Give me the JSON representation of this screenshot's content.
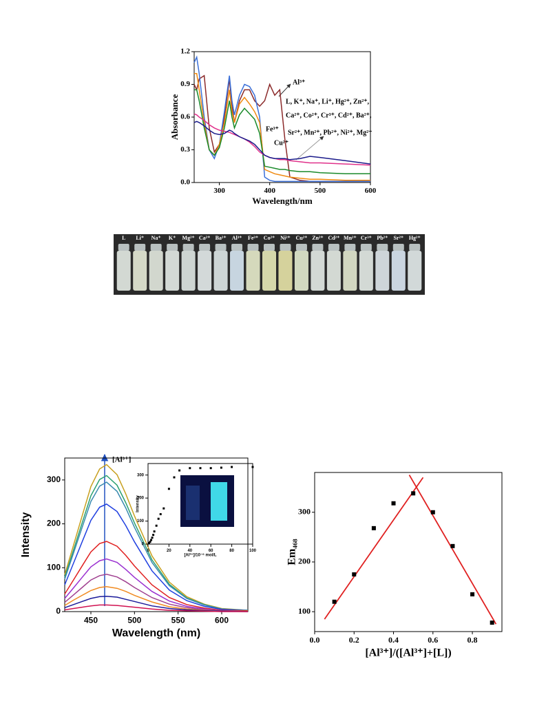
{
  "chart_data": [
    {
      "type": "line",
      "xlabel": "Wavelength/nm",
      "ylabel": "Absorbance",
      "x": [
        250,
        255,
        260,
        270,
        280,
        290,
        300,
        310,
        320,
        325,
        330,
        340,
        350,
        360,
        370,
        380,
        390,
        400,
        410,
        420,
        430,
        440,
        460,
        480,
        500,
        550,
        600
      ],
      "xlim": [
        250,
        600
      ],
      "xticks": [
        300,
        400,
        500,
        600
      ],
      "ylim": [
        0,
        1.2
      ],
      "yticks": [
        {
          "value": 0,
          "label": "0.0"
        },
        {
          "value": 0.3,
          "label": "0.3"
        },
        {
          "value": 0.6,
          "label": "0.6"
        },
        {
          "value": 0.9,
          "label": "0.9"
        },
        {
          "value": 1.2,
          "label": "1.2"
        }
      ],
      "annotations": [
        "Al³⁺",
        "L, K⁺, Na⁺, Li⁺, Hg²⁺, Zn²⁺,",
        "Ca²⁺, Co²⁺, Cr³⁺, Cd²⁺, Ba²⁺,",
        "Sr²⁺, Mn²⁺, Pb²⁺, Ni²⁺, Mg²⁺",
        "Fe³⁺",
        "Cu²⁺"
      ],
      "series": [
        {
          "color": "#8b2a2a",
          "values": [
            0.9,
            0.85,
            0.95,
            0.98,
            0.5,
            0.28,
            0.35,
            0.6,
            0.95,
            0.7,
            0.55,
            0.75,
            0.85,
            0.85,
            0.75,
            0.7,
            0.75,
            0.9,
            0.8,
            0.85,
            0.4,
            0.05,
            0.02,
            0.01,
            0.01,
            0.01,
            0.01
          ]
        },
        {
          "color": "#3a6fd8",
          "values": [
            1.1,
            1.15,
            1.0,
            0.6,
            0.3,
            0.22,
            0.35,
            0.65,
            0.98,
            0.75,
            0.62,
            0.8,
            0.9,
            0.88,
            0.8,
            0.6,
            0.05,
            0.02,
            0.01,
            0.01,
            0.01,
            0.01,
            0.01,
            0.01,
            0.01,
            0.01,
            0.01
          ]
        },
        {
          "color": "#f08a10",
          "values": [
            1.0,
            1.0,
            0.85,
            0.55,
            0.3,
            0.25,
            0.35,
            0.55,
            0.85,
            0.65,
            0.55,
            0.72,
            0.78,
            0.72,
            0.65,
            0.55,
            0.12,
            0.1,
            0.08,
            0.07,
            0.06,
            0.05,
            0.04,
            0.03,
            0.03,
            0.02,
            0.02
          ]
        },
        {
          "color": "#1a8a2a",
          "values": [
            0.85,
            0.85,
            0.75,
            0.5,
            0.3,
            0.25,
            0.32,
            0.5,
            0.75,
            0.6,
            0.5,
            0.62,
            0.68,
            0.63,
            0.58,
            0.45,
            0.15,
            0.14,
            0.13,
            0.12,
            0.12,
            0.11,
            0.1,
            0.1,
            0.09,
            0.08,
            0.08
          ]
        },
        {
          "color": "#e0308a",
          "values": [
            0.63,
            0.62,
            0.6,
            0.57,
            0.53,
            0.5,
            0.48,
            0.47,
            0.46,
            0.45,
            0.44,
            0.42,
            0.4,
            0.37,
            0.33,
            0.28,
            0.25,
            0.23,
            0.22,
            0.21,
            0.21,
            0.2,
            0.19,
            0.18,
            0.18,
            0.17,
            0.16
          ]
        },
        {
          "color": "#1a1a8a",
          "values": [
            0.55,
            0.56,
            0.55,
            0.52,
            0.48,
            0.45,
            0.44,
            0.45,
            0.48,
            0.47,
            0.45,
            0.42,
            0.4,
            0.38,
            0.35,
            0.3,
            0.25,
            0.23,
            0.22,
            0.22,
            0.22,
            0.21,
            0.22,
            0.24,
            0.23,
            0.2,
            0.17
          ]
        }
      ]
    },
    {
      "type": "line",
      "xlabel": "Wavelength (nm)",
      "ylabel": "Intensity",
      "annotations": [
        "[Al³⁺]"
      ],
      "x": [
        420,
        430,
        440,
        450,
        460,
        468,
        480,
        490,
        500,
        520,
        540,
        560,
        580,
        600,
        630
      ],
      "xlim": [
        420,
        630
      ],
      "xticks": [
        450,
        500,
        550,
        600
      ],
      "ylim": [
        0,
        350
      ],
      "yticks": [
        0,
        100,
        200,
        300
      ],
      "series": [
        {
          "color": "#c8a020",
          "values": [
            84,
            151,
            218,
            285,
            325,
            335,
            312,
            268,
            218,
            127,
            67,
            34,
            17,
            7,
            3
          ]
        },
        {
          "color": "#2aa070",
          "values": [
            78,
            140,
            202,
            264,
            301,
            310,
            288,
            248,
            202,
            118,
            62,
            31,
            16,
            6,
            3
          ]
        },
        {
          "color": "#3a8ab0",
          "values": [
            74,
            133,
            192,
            251,
            286,
            295,
            274,
            236,
            192,
            112,
            59,
            30,
            15,
            6,
            3
          ]
        },
        {
          "color": "#2040e0",
          "values": [
            61,
            110,
            159,
            208,
            238,
            245,
            228,
            196,
            159,
            93,
            49,
            25,
            12,
            5,
            2
          ]
        },
        {
          "color": "#e02020",
          "values": [
            40,
            72,
            104,
            136,
            155,
            160,
            149,
            128,
            104,
            61,
            32,
            16,
            8,
            3,
            2
          ]
        },
        {
          "color": "#9a30d0",
          "values": [
            30,
            54,
            78,
            102,
            116,
            120,
            112,
            96,
            78,
            46,
            24,
            12,
            6,
            2,
            1
          ]
        },
        {
          "color": "#a04090",
          "values": [
            21,
            38,
            55,
            72,
            82,
            85,
            79,
            68,
            55,
            32,
            17,
            9,
            4,
            2,
            1
          ]
        },
        {
          "color": "#f08a20",
          "values": [
            14,
            26,
            37,
            48,
            55,
            57,
            53,
            46,
            37,
            22,
            11,
            6,
            3,
            1,
            1
          ]
        },
        {
          "color": "#1a1a9a",
          "values": [
            9,
            16,
            23,
            30,
            34,
            35,
            33,
            28,
            23,
            13,
            7,
            4,
            2,
            1,
            0
          ]
        },
        {
          "color": "#d01050",
          "values": [
            4,
            7,
            10,
            13,
            15,
            15,
            14,
            12,
            10,
            6,
            3,
            2,
            1,
            0,
            0
          ]
        }
      ]
    },
    {
      "type": "scatter",
      "xlabel": "[Al³⁺]/10⁻⁶ mol/L",
      "ylabel": "Intensity",
      "color": "#000000",
      "x": [
        1,
        2,
        3,
        4,
        5,
        6,
        8,
        10,
        12,
        15,
        20,
        25,
        30,
        40,
        50,
        60,
        70,
        80,
        100
      ],
      "values": [
        5,
        10,
        18,
        28,
        40,
        55,
        80,
        110,
        130,
        155,
        240,
        290,
        320,
        330,
        330,
        330,
        332,
        335,
        335
      ],
      "xlim": [
        0,
        100
      ],
      "xticks": [
        0,
        20,
        40,
        60,
        80,
        100
      ],
      "ylim": [
        0,
        350
      ],
      "yticks": [
        0,
        100,
        200,
        300
      ]
    },
    {
      "type": "scatter",
      "xlabel": "[Al³⁺]/([Al³⁺]+[L])",
      "ylabel": "Em₄₆₈",
      "color": "#000000",
      "x": [
        0.1,
        0.2,
        0.3,
        0.4,
        0.5,
        0.6,
        0.7,
        0.8,
        0.9
      ],
      "values": [
        120,
        175,
        268,
        318,
        338,
        300,
        232,
        135,
        78
      ],
      "fit_color": "#e02020",
      "fit_lines": [
        {
          "x": [
            0.05,
            0.55
          ],
          "y": [
            85,
            370
          ]
        },
        {
          "x": [
            0.48,
            0.92
          ],
          "y": [
            375,
            75
          ]
        }
      ],
      "xlim": [
        0,
        0.95
      ],
      "xticks": [
        {
          "value": 0,
          "label": "0.0"
        },
        {
          "value": 0.2,
          "label": "0.2"
        },
        {
          "value": 0.4,
          "label": "0.4"
        },
        {
          "value": 0.6,
          "label": "0.6"
        },
        {
          "value": 0.8,
          "label": "0.8"
        }
      ],
      "ylim": [
        60,
        380
      ],
      "yticks": [
        100,
        200,
        300
      ]
    }
  ],
  "photo": {
    "labels": [
      "L",
      "Li⁺",
      "Na⁺",
      "K⁺",
      "Mg²⁺",
      "Ca²⁺",
      "Ba²⁺",
      "Al³⁺",
      "Fe³⁺",
      "Co²⁺",
      "Ni²⁺",
      "Cu²⁺",
      "Zn²⁺",
      "Cd²⁺",
      "Mn²⁺",
      "Cr³⁺",
      "Pb²⁺",
      "Sr²⁺",
      "Hg²⁺"
    ]
  }
}
